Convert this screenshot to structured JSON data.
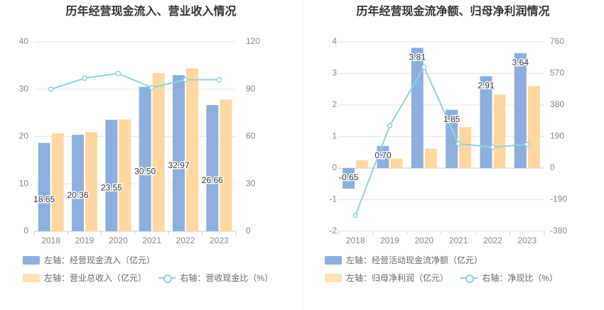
{
  "colors": {
    "primary_bar": "#8eaede",
    "secondary_bar": "#fed89e",
    "line": "#8fd3dc"
  },
  "left_chart": {
    "title": "历年经营现金流入、营业收入情况",
    "legend": [
      "左轴：经营现金流入（亿元）",
      "左轴：营业总收入（亿元）",
      "右轴：营收现金比（%）"
    ]
  },
  "right_chart": {
    "title": "历年经营现金流净额、归母净利润情况",
    "legend": [
      "左轴：经营活动现金流净额（亿元）",
      "左轴：归母净利润（亿元）",
      "右轴：净现比（%）"
    ]
  },
  "chart_data": [
    {
      "type": "bar",
      "title": "历年经营现金流入、营业收入情况",
      "categories": [
        "2018",
        "2019",
        "2020",
        "2021",
        "2022",
        "2023"
      ],
      "left_axis": {
        "ylim": [
          0,
          40
        ],
        "ticks": [
          "0",
          "10",
          "20",
          "30",
          "40"
        ]
      },
      "right_axis": {
        "ylim": [
          0,
          120
        ],
        "ticks": [
          "0",
          "30",
          "60",
          "90",
          "120"
        ]
      },
      "grid": true,
      "legend_position": "bottom",
      "series": [
        {
          "name": "左轴：经营现金流入（亿元）",
          "type": "bar",
          "axis": "left",
          "values": [
            18.65,
            20.36,
            23.55,
            30.5,
            32.97,
            26.66
          ],
          "labels": [
            "18.65",
            "20.36",
            "23.55",
            "30.50",
            "32.97",
            "26.66"
          ]
        },
        {
          "name": "左轴：营业总收入（亿元）",
          "type": "bar",
          "axis": "left",
          "values": [
            20.7,
            20.9,
            23.6,
            33.4,
            34.4,
            27.8
          ]
        },
        {
          "name": "右轴：营收现金比（%）",
          "type": "line",
          "axis": "right",
          "values": [
            90,
            97,
            100,
            91,
            96,
            96
          ]
        }
      ]
    },
    {
      "type": "bar",
      "title": "历年经营现金流净额、归母净利润情况",
      "categories": [
        "2018",
        "2019",
        "2020",
        "2021",
        "2022",
        "2023"
      ],
      "left_axis": {
        "ylim": [
          -2,
          4
        ],
        "ticks": [
          "-2",
          "-1",
          "0",
          "1",
          "2",
          "3",
          "4"
        ]
      },
      "right_axis": {
        "ylim": [
          -380,
          760
        ],
        "ticks": [
          "-380",
          "-190",
          "0",
          "190",
          "380",
          "570",
          "760"
        ]
      },
      "grid": true,
      "legend_position": "bottom",
      "series": [
        {
          "name": "左轴：经营活动现金流净额（亿元）",
          "type": "bar",
          "axis": "left",
          "values": [
            -0.65,
            0.7,
            3.81,
            1.85,
            2.91,
            3.64
          ],
          "labels": [
            "-0.65",
            "0.70",
            "3.81",
            "1.85",
            "2.91",
            "3.64"
          ]
        },
        {
          "name": "左轴：归母净利润（亿元）",
          "type": "bar",
          "axis": "left",
          "values": [
            0.25,
            0.3,
            0.62,
            1.3,
            2.33,
            2.6
          ]
        },
        {
          "name": "右轴：净现比（%）",
          "type": "line",
          "axis": "right",
          "values": [
            -285,
            256,
            608,
            147,
            126,
            143
          ]
        }
      ]
    }
  ]
}
